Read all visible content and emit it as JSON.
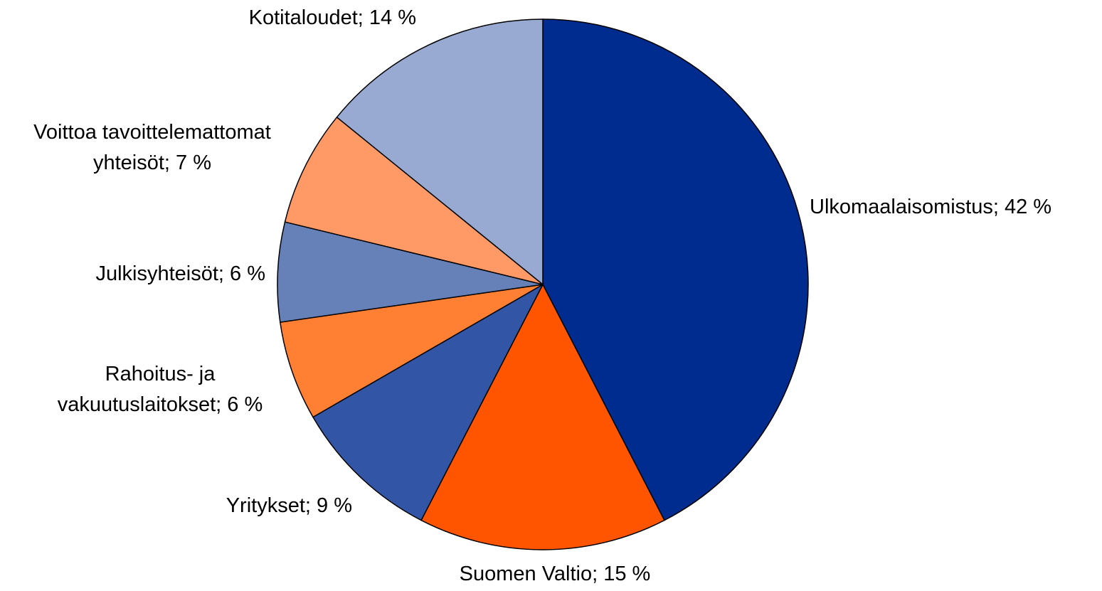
{
  "chart_data": {
    "type": "pie",
    "categories": [
      "Ulkomaalaisomistus; 42 %",
      "Suomen Valtio; 15 %",
      "Yritykset; 9 %",
      "Rahoitus- ja\nvakuutuslaitokset; 6 %",
      "Julkisyhteisöt; 6 %",
      "Voittoa tavoittelemattomat\nyhteisöt; 7 %",
      "Kotitaloudet; 14 %"
    ],
    "values": [
      42,
      15,
      9,
      6,
      6,
      7,
      14
    ],
    "colors": [
      "#002b8f",
      "#ff5500",
      "#3355a5",
      "#ff7f33",
      "#6680b8",
      "#ff9966",
      "#99aad2"
    ]
  }
}
